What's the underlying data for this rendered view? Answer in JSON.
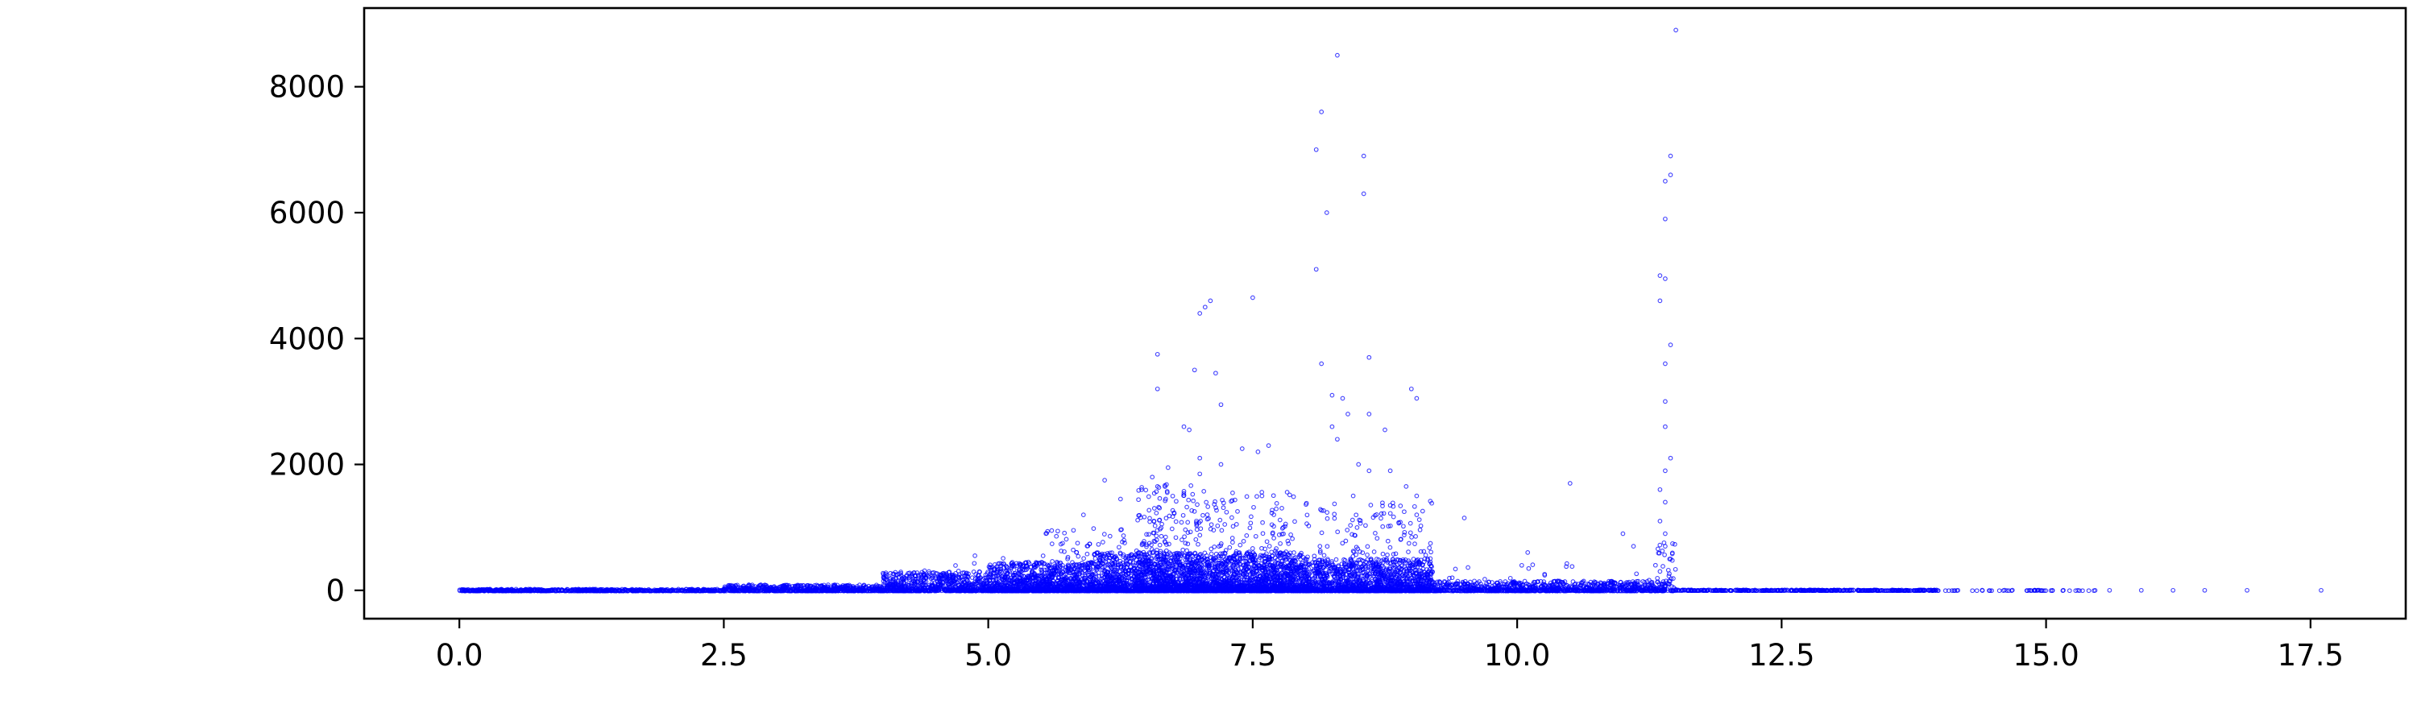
{
  "chart_data": {
    "type": "scatter",
    "title": "",
    "xlabel": "",
    "ylabel": "",
    "xlim": [
      -0.9,
      18.4
    ],
    "ylim": [
      -450,
      9250
    ],
    "grid": false,
    "legend": "none",
    "marker_color": "#0000ff",
    "marker_style": "small hollow circles",
    "x_ticks": [
      {
        "value": 0.0,
        "label": "0.0"
      },
      {
        "value": 2.5,
        "label": "2.5"
      },
      {
        "value": 5.0,
        "label": "5.0"
      },
      {
        "value": 7.5,
        "label": "7.5"
      },
      {
        "value": 10.0,
        "label": "10.0"
      },
      {
        "value": 12.5,
        "label": "12.5"
      },
      {
        "value": 15.0,
        "label": "15.0"
      },
      {
        "value": 17.5,
        "label": "17.5"
      }
    ],
    "y_ticks": [
      {
        "value": 0,
        "label": "0"
      },
      {
        "value": 2000,
        "label": "2000"
      },
      {
        "value": 4000,
        "label": "4000"
      },
      {
        "value": 6000,
        "label": "6000"
      },
      {
        "value": 8000,
        "label": "8000"
      }
    ],
    "points": [
      [
        8.3,
        8500
      ],
      [
        11.5,
        8900
      ],
      [
        8.15,
        7600
      ],
      [
        8.1,
        7000
      ],
      [
        8.55,
        6900
      ],
      [
        8.2,
        6000
      ],
      [
        8.55,
        6300
      ],
      [
        11.45,
        6900
      ],
      [
        11.45,
        6600
      ],
      [
        11.4,
        6500
      ],
      [
        11.4,
        5900
      ],
      [
        8.1,
        5100
      ],
      [
        11.35,
        5000
      ],
      [
        11.4,
        4950
      ],
      [
        11.35,
        4600
      ],
      [
        11.45,
        3900
      ],
      [
        11.4,
        3600
      ],
      [
        11.4,
        3000
      ],
      [
        11.4,
        2600
      ],
      [
        11.45,
        2100
      ],
      [
        11.4,
        1900
      ],
      [
        11.35,
        1600
      ],
      [
        11.4,
        1400
      ],
      [
        11.35,
        1100
      ],
      [
        11.4,
        900
      ],
      [
        11.4,
        700
      ],
      [
        11.45,
        500
      ],
      [
        11.35,
        300
      ],
      [
        7.1,
        4600
      ],
      [
        7.05,
        4500
      ],
      [
        7.5,
        4650
      ],
      [
        7.0,
        4400
      ],
      [
        6.6,
        3750
      ],
      [
        6.6,
        3200
      ],
      [
        6.95,
        3500
      ],
      [
        7.15,
        3450
      ],
      [
        7.2,
        2950
      ],
      [
        6.85,
        2600
      ],
      [
        6.9,
        2550
      ],
      [
        8.15,
        3600
      ],
      [
        8.25,
        3100
      ],
      [
        8.35,
        3050
      ],
      [
        8.4,
        2800
      ],
      [
        8.6,
        3700
      ],
      [
        8.6,
        2800
      ],
      [
        8.75,
        2550
      ],
      [
        9.0,
        3200
      ],
      [
        9.05,
        3050
      ],
      [
        7.65,
        2300
      ],
      [
        7.55,
        2200
      ],
      [
        7.4,
        2250
      ],
      [
        8.25,
        2600
      ],
      [
        8.3,
        2400
      ],
      [
        8.5,
        2000
      ],
      [
        8.6,
        1900
      ],
      [
        8.8,
        1900
      ],
      [
        6.1,
        1750
      ],
      [
        6.55,
        1800
      ],
      [
        7.0,
        2100
      ],
      [
        7.2,
        2000
      ],
      [
        6.7,
        1950
      ],
      [
        8.95,
        1650
      ],
      [
        9.05,
        1500
      ],
      [
        10.5,
        1700
      ],
      [
        9.5,
        1150
      ],
      [
        7.0,
        1850
      ],
      [
        6.6,
        1650
      ],
      [
        8.45,
        1500
      ],
      [
        8.8,
        1350
      ],
      [
        9.05,
        1200
      ],
      [
        11.0,
        900
      ],
      [
        11.1,
        700
      ],
      [
        10.1,
        600
      ],
      [
        5.6,
        950
      ],
      [
        5.9,
        1200
      ],
      [
        6.25,
        1450
      ],
      [
        6.45,
        1600
      ]
    ],
    "cluster_seed": 17,
    "clusters": [
      {
        "x_range": [
          0.0,
          2.5
        ],
        "y_range": [
          -10,
          20
        ],
        "count": 700
      },
      {
        "x_range": [
          2.5,
          4.0
        ],
        "y_range": [
          -10,
          90
        ],
        "count": 700
      },
      {
        "x_range": [
          4.0,
          5.0
        ],
        "y_range": [
          -10,
          300
        ],
        "count": 700
      },
      {
        "x_range": [
          4.3,
          5.2
        ],
        "y_range": [
          0,
          550
        ],
        "count": 60
      },
      {
        "x_range": [
          5.0,
          6.0
        ],
        "y_range": [
          -10,
          450
        ],
        "count": 1200
      },
      {
        "x_range": [
          5.5,
          6.3
        ],
        "y_range": [
          0,
          1000
        ],
        "count": 180
      },
      {
        "x_range": [
          6.0,
          7.0
        ],
        "y_range": [
          -10,
          600
        ],
        "count": 1400
      },
      {
        "x_range": [
          6.4,
          7.0
        ],
        "y_range": [
          0,
          1700
        ],
        "count": 350
      },
      {
        "x_range": [
          7.0,
          8.0
        ],
        "y_range": [
          -10,
          600
        ],
        "count": 1400
      },
      {
        "x_range": [
          7.0,
          7.9
        ],
        "y_range": [
          0,
          1600
        ],
        "count": 320
      },
      {
        "x_range": [
          8.0,
          9.2
        ],
        "y_range": [
          -10,
          500
        ],
        "count": 1300
      },
      {
        "x_range": [
          8.0,
          9.2
        ],
        "y_range": [
          0,
          1500
        ],
        "count": 300
      },
      {
        "x_range": [
          9.2,
          11.4
        ],
        "y_range": [
          -10,
          150
        ],
        "count": 900
      },
      {
        "x_range": [
          9.3,
          11.3
        ],
        "y_range": [
          0,
          450
        ],
        "count": 90
      },
      {
        "x_range": [
          11.3,
          11.5
        ],
        "y_range": [
          -10,
          800
        ],
        "count": 60
      },
      {
        "x_range": [
          11.5,
          14.0
        ],
        "y_range": [
          -5,
          8
        ],
        "count": 450
      },
      {
        "x_range": [
          14.0,
          15.5
        ],
        "y_range": [
          -5,
          5
        ],
        "count": 50
      }
    ],
    "sparse_tail": [
      [
        15.3,
        0
      ],
      [
        15.6,
        0
      ],
      [
        15.9,
        0
      ],
      [
        16.2,
        0
      ],
      [
        16.5,
        0
      ],
      [
        16.9,
        0
      ],
      [
        17.6,
        0
      ]
    ]
  }
}
